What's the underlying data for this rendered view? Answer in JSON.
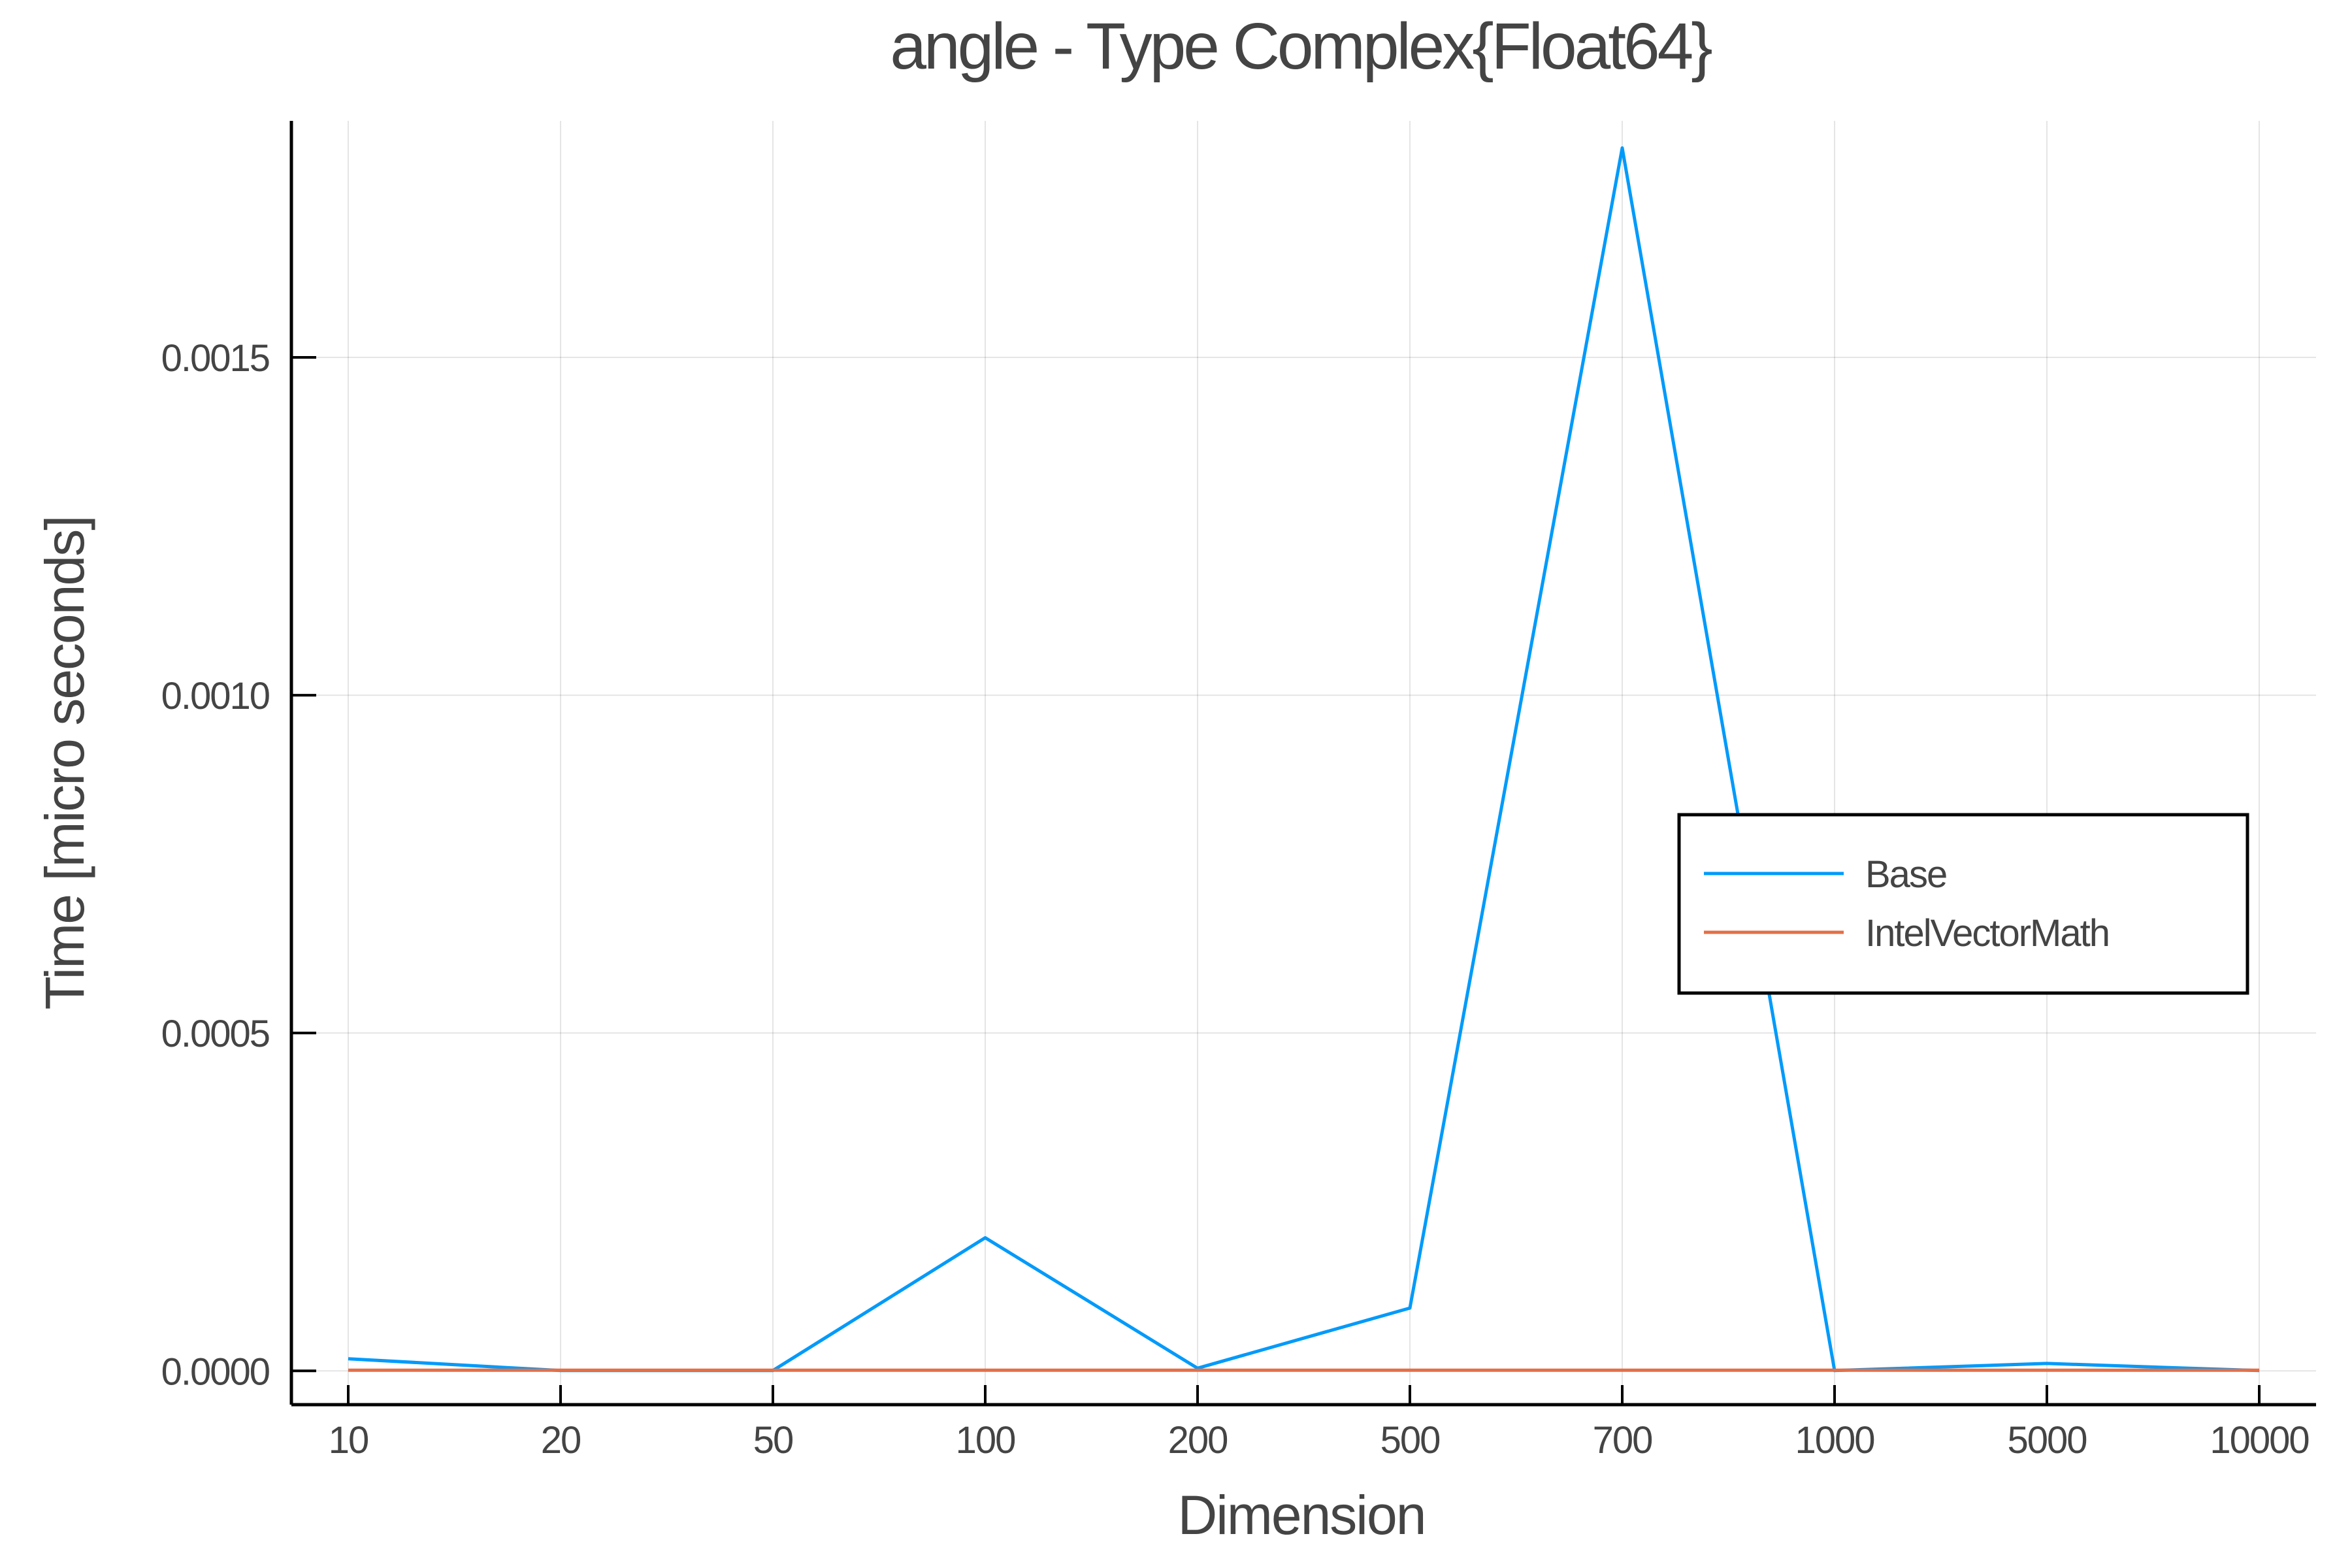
{
  "chart_data": {
    "type": "line",
    "title": "angle - Type Complex{Float64}",
    "xlabel": "Dimension",
    "ylabel": "Time [micro seconds]",
    "categories": [
      "10",
      "20",
      "50",
      "100",
      "200",
      "500",
      "700",
      "1000",
      "5000",
      "10000"
    ],
    "ylim": [
      -5e-05,
      0.00185
    ],
    "yticks": [
      0.0,
      0.0005,
      0.001,
      0.0015
    ],
    "ytick_labels": [
      "0.0000",
      "0.0005",
      "0.0010",
      "0.0015"
    ],
    "grid": true,
    "legend_position": "right",
    "series": [
      {
        "name": "Base",
        "color": "#009AFA",
        "values": [
          1.8e-05,
          5e-07,
          5e-07,
          0.000197,
          4e-06,
          9.3e-05,
          0.00181,
          5e-07,
          1.1e-05,
          5e-07
        ]
      },
      {
        "name": "IntelVectorMath",
        "color": "#E36F47",
        "values": [
          1e-06,
          1e-06,
          1e-06,
          1e-06,
          1e-06,
          1e-06,
          1e-06,
          1e-06,
          1e-06,
          1e-06
        ]
      }
    ]
  }
}
